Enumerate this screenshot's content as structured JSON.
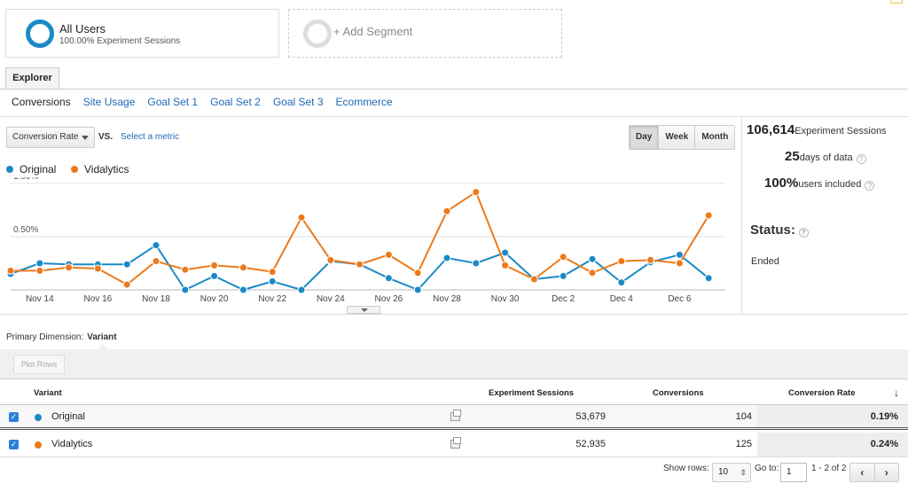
{
  "segments": {
    "active": {
      "title": "All Users",
      "subtitle": "100.00% Experiment Sessions"
    },
    "add_label": "+ Add Segment"
  },
  "explorer_tab": "Explorer",
  "subtabs": [
    "Conversions",
    "Site Usage",
    "Goal Set 1",
    "Goal Set 2",
    "Goal Set 3",
    "Ecommerce"
  ],
  "metric": {
    "selected": "Conversion Rate",
    "vs_label": "VS.",
    "select_metric": "Select a metric"
  },
  "period": {
    "options": [
      "Day",
      "Week",
      "Month"
    ],
    "active": "Day"
  },
  "stats": {
    "sessions_value": "106,614",
    "sessions_label": "Experiment Sessions",
    "days_value": "25",
    "days_label": "days of data",
    "users_value": "100%",
    "users_label": "users included",
    "status_label": "Status:",
    "status_value": "Ended",
    "help_glyph": "?"
  },
  "chart_data": {
    "type": "line",
    "ylabels": [
      "1.00%",
      "0.50%"
    ],
    "ylim": [
      0,
      1.1
    ],
    "grid": true,
    "legend": "top-left",
    "xticks": [
      "Nov 14",
      "Nov 16",
      "Nov 18",
      "Nov 20",
      "Nov 22",
      "Nov 24",
      "Nov 26",
      "Nov 28",
      "Nov 30",
      "Dec 2",
      "Dec 4",
      "Dec 6"
    ],
    "series": [
      {
        "name": "Original",
        "color": "#1a8ac6",
        "values": [
          0.15,
          0.25,
          0.24,
          0.24,
          0.24,
          0.42,
          0.0,
          0.13,
          0.0,
          0.08,
          0.0,
          0.27,
          0.24,
          0.11,
          0.0,
          0.3,
          0.25,
          0.35,
          0.1,
          0.13,
          0.29,
          0.07,
          0.26,
          0.33,
          0.11
        ]
      },
      {
        "name": "Vidalytics",
        "color": "#ec7a1c",
        "values": [
          0.18,
          0.18,
          0.21,
          0.2,
          0.05,
          0.27,
          0.19,
          0.23,
          0.21,
          0.17,
          0.68,
          0.28,
          0.24,
          0.33,
          0.16,
          0.74,
          0.92,
          0.23,
          0.1,
          0.31,
          0.16,
          0.27,
          0.28,
          0.25,
          0.7
        ]
      }
    ]
  },
  "primary_dimension": {
    "label": "Primary Dimension:",
    "value": "Variant"
  },
  "plot_rows_label": "Plot Rows",
  "table": {
    "headers": {
      "variant": "Variant",
      "sessions": "Experiment Sessions",
      "conversions": "Conversions",
      "rate": "Conversion Rate",
      "sort_glyph": "↓"
    },
    "rows": [
      {
        "name": "Original",
        "color": "#1a8ac6",
        "sessions": "53,679",
        "conversions": "104",
        "rate": "0.19%"
      },
      {
        "name": "Vidalytics",
        "color": "#ec7a1c",
        "sessions": "52,935",
        "conversions": "125",
        "rate": "0.24%"
      }
    ],
    "check_glyph": "✓"
  },
  "footer": {
    "show_rows_label": "Show rows:",
    "show_rows_value": "10",
    "goto_label": "Go to:",
    "goto_value": "1",
    "range": "1 - 2 of 2",
    "prev": "‹",
    "next": "›"
  }
}
